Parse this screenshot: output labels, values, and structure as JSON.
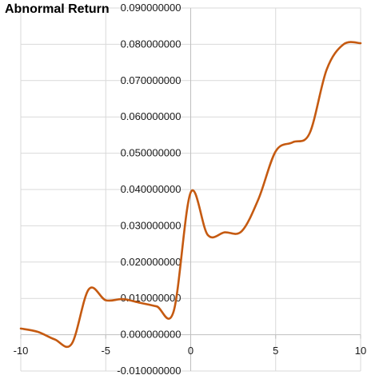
{
  "chart_data": {
    "type": "line",
    "title": "Abnormal Return",
    "xlim": [
      -10,
      10
    ],
    "ylim": [
      -0.01,
      0.09
    ],
    "x_ticks": [
      -10,
      -5,
      0,
      5,
      10
    ],
    "x_tick_labels": [
      "-10",
      "-5",
      "0",
      "5",
      "10"
    ],
    "y_ticks": [
      -0.01,
      0.0,
      0.01,
      0.02,
      0.03,
      0.04,
      0.05,
      0.06,
      0.07,
      0.08,
      0.09
    ],
    "y_tick_labels": [
      "-0.010000000",
      "0.000000000",
      "0.010000000",
      "0.020000000",
      "0.030000000",
      "0.040000000",
      "0.050000000",
      "0.060000000",
      "0.070000000",
      "0.080000000",
      "0.090000000"
    ],
    "grid": true,
    "series": [
      {
        "color": "#C55A11",
        "x": [
          -10,
          -9,
          -8,
          -7,
          -6,
          -5,
          -4,
          -3,
          -2,
          -1,
          0,
          1,
          2,
          3,
          4,
          5,
          6,
          7,
          8,
          9,
          10
        ],
        "y": [
          0.0017,
          0.0008,
          -0.0013,
          -0.0025,
          0.0125,
          0.0095,
          0.0098,
          0.0088,
          0.0078,
          0.0065,
          0.0392,
          0.0275,
          0.0282,
          0.0285,
          0.0375,
          0.0505,
          0.053,
          0.0555,
          0.073,
          0.08,
          0.0803
        ]
      }
    ]
  }
}
